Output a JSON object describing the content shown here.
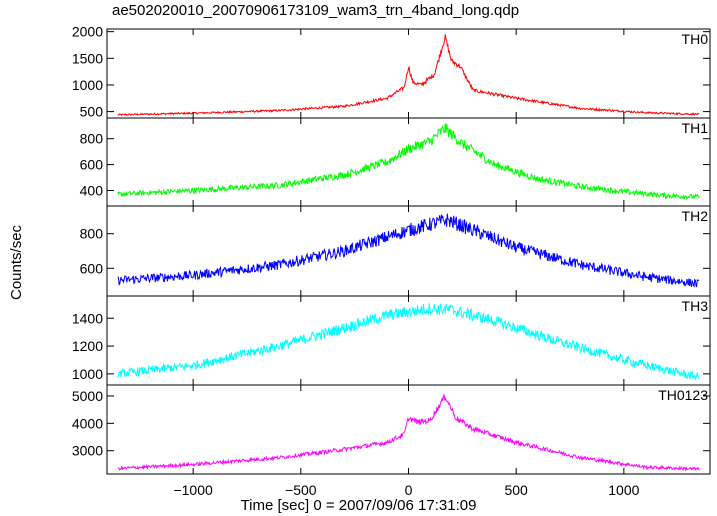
{
  "title": "ae502020010_20070906173109_wam3_trn_4band_long.qdp",
  "ylabel": "Counts/sec",
  "xlabel": "Time [sec] 0 = 2007/09/06 17:31:09",
  "chart_data": {
    "type": "line",
    "title": "ae502020010_20070906173109_wam3_trn_4band_long.qdp",
    "xlabel": "Time [sec] 0 = 2007/09/06 17:31:09",
    "ylabel": "Counts/sec",
    "xlim": [
      -1400,
      1400
    ],
    "x_ticks": [
      -1000,
      -500,
      0,
      500,
      1000
    ],
    "x_tick_labels": [
      "−1000",
      "−500",
      "0",
      "500",
      "1000"
    ],
    "grid": false,
    "panels": [
      {
        "name": "TH0",
        "color": "#ff0000",
        "ylim": [
          380,
          2050
        ],
        "yticks": [
          500,
          1000,
          1500,
          2000
        ],
        "x": [
          -1350,
          -1000,
          -600,
          -300,
          -100,
          -20,
          0,
          20,
          60,
          120,
          170,
          200,
          240,
          300,
          500,
          800,
          1100,
          1350
        ],
        "y": [
          440,
          470,
          520,
          600,
          750,
          950,
          1350,
          1050,
          1000,
          1200,
          1900,
          1450,
          1350,
          900,
          750,
          560,
          480,
          450
        ]
      },
      {
        "name": "TH1",
        "color": "#00ff00",
        "ylim": [
          280,
          960
        ],
        "yticks": [
          400,
          600,
          800
        ],
        "x": [
          -1350,
          -1000,
          -600,
          -300,
          -100,
          0,
          100,
          170,
          250,
          400,
          600,
          800,
          1000,
          1200,
          1350
        ],
        "y": [
          370,
          400,
          440,
          520,
          620,
          720,
          780,
          880,
          760,
          600,
          490,
          430,
          390,
          360,
          350
        ]
      },
      {
        "name": "TH2",
        "color": "#0000ff",
        "ylim": [
          440,
          960
        ],
        "yticks": [
          600,
          800
        ],
        "x": [
          -1350,
          -1000,
          -600,
          -300,
          -100,
          0,
          180,
          300,
          500,
          800,
          1100,
          1350
        ],
        "y": [
          530,
          560,
          620,
          700,
          780,
          820,
          880,
          820,
          720,
          620,
          550,
          510
        ]
      },
      {
        "name": "TH3",
        "color": "#00ffff",
        "ylim": [
          920,
          1560
        ],
        "yticks": [
          1000,
          1200,
          1400
        ],
        "x": [
          -1350,
          -1000,
          -600,
          -300,
          -100,
          100,
          200,
          400,
          700,
          1000,
          1300,
          1350
        ],
        "y": [
          1000,
          1060,
          1200,
          1330,
          1420,
          1470,
          1460,
          1380,
          1230,
          1100,
          990,
          980
        ]
      },
      {
        "name": "TH0123",
        "color": "#ff00ff",
        "ylim": [
          2150,
          5400
        ],
        "yticks": [
          3000,
          4000,
          5000
        ],
        "x": [
          -1350,
          -1000,
          -600,
          -300,
          -100,
          -20,
          0,
          40,
          100,
          170,
          220,
          300,
          500,
          800,
          1100,
          1350
        ],
        "y": [
          2350,
          2500,
          2750,
          3050,
          3300,
          3600,
          4200,
          4050,
          4100,
          5000,
          4200,
          3800,
          3300,
          2750,
          2400,
          2330
        ]
      }
    ]
  }
}
